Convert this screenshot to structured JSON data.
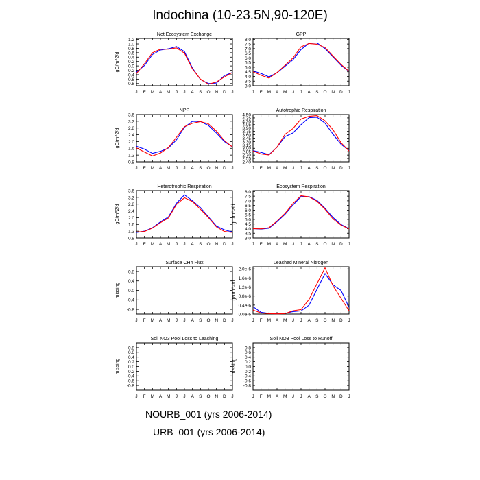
{
  "title": "Indochina (10-23.5N,90-120E)",
  "months": [
    "J",
    "F",
    "M",
    "A",
    "M",
    "J",
    "J",
    "A",
    "S",
    "O",
    "N",
    "D",
    "J"
  ],
  "series_styles": [
    {
      "key": "nourb",
      "color": "#0000ff"
    },
    {
      "key": "urb",
      "color": "#ff0000"
    }
  ],
  "legend": [
    {
      "label": "NOURB_001 (yrs 2006-2014)",
      "color": "#0000ff"
    },
    {
      "label": "URB_001 (yrs 2006-2014)",
      "color": "#ff0000"
    }
  ],
  "chart_data": [
    {
      "type": "line",
      "title": "Net Ecosystem Exchange",
      "ylabel": "gC/m^2/d",
      "ylim": [
        -0.9,
        1.25
      ],
      "ticks": [
        "-0.8",
        "-0.6",
        "-0.4",
        "-0.2",
        "0.0",
        "0.2",
        "0.4",
        "0.6",
        "0.8",
        "1.0",
        "1.2"
      ],
      "tick_values": [
        -0.8,
        -0.6,
        -0.4,
        -0.2,
        0.0,
        0.2,
        0.4,
        0.6,
        0.8,
        1.0,
        1.2
      ],
      "series": [
        {
          "key": "nourb",
          "values": [
            -0.28,
            0.02,
            0.52,
            0.72,
            0.78,
            0.88,
            0.65,
            -0.1,
            -0.62,
            -0.8,
            -0.78,
            -0.44,
            -0.3
          ]
        },
        {
          "key": "urb",
          "values": [
            -0.35,
            0.1,
            0.6,
            0.76,
            0.76,
            0.82,
            0.58,
            -0.14,
            -0.6,
            -0.83,
            -0.73,
            -0.5,
            -0.3
          ]
        }
      ]
    },
    {
      "type": "line",
      "title": "GPP",
      "ylabel": "",
      "ylim": [
        3.0,
        8.1
      ],
      "ticks": [
        "3.0",
        "3.5",
        "4.0",
        "4.5",
        "5.0",
        "5.5",
        "6.0",
        "6.5",
        "7.0",
        "7.5",
        "8.0"
      ],
      "tick_values": [
        3.0,
        3.5,
        4.0,
        4.5,
        5.0,
        5.5,
        6.0,
        6.5,
        7.0,
        7.5,
        8.0
      ],
      "series": [
        {
          "key": "nourb",
          "values": [
            4.6,
            4.32,
            3.95,
            4.4,
            5.1,
            5.8,
            6.9,
            7.6,
            7.62,
            7.0,
            6.1,
            5.2,
            4.55
          ]
        },
        {
          "key": "urb",
          "values": [
            4.5,
            4.12,
            3.82,
            4.42,
            5.2,
            6.0,
            7.2,
            7.55,
            7.48,
            7.12,
            6.2,
            5.3,
            4.55
          ]
        }
      ]
    },
    {
      "type": "line",
      "title": "NPP",
      "ylabel": "gC/m^2/d",
      "ylim": [
        0.8,
        3.6
      ],
      "ticks": [
        "0.8",
        "1.2",
        "1.6",
        "2.0",
        "2.4",
        "2.8",
        "3.2",
        "3.6"
      ],
      "tick_values": [
        0.8,
        1.2,
        1.6,
        2.0,
        2.4,
        2.8,
        3.2,
        3.6
      ],
      "series": [
        {
          "key": "nourb",
          "values": [
            1.72,
            1.55,
            1.3,
            1.42,
            1.62,
            2.1,
            2.85,
            3.2,
            3.18,
            2.95,
            2.5,
            2.0,
            1.68
          ]
        },
        {
          "key": "urb",
          "values": [
            1.62,
            1.38,
            1.15,
            1.32,
            1.65,
            2.25,
            2.88,
            3.08,
            3.18,
            3.05,
            2.62,
            2.05,
            1.68
          ]
        }
      ]
    },
    {
      "type": "line",
      "title": "Autotrophic Respiration",
      "ylabel": "",
      "ylim": [
        2.4,
        4.5
      ],
      "ticks": [
        "2.40",
        "2.55",
        "2.70",
        "2.85",
        "3.00",
        "3.15",
        "3.30",
        "3.45",
        "3.60",
        "3.75",
        "3.90",
        "4.05",
        "4.20",
        "4.35",
        "4.50"
      ],
      "tick_values": [
        2.4,
        2.55,
        2.7,
        2.85,
        3.0,
        3.15,
        3.3,
        3.45,
        3.6,
        3.75,
        3.9,
        4.05,
        4.2,
        4.35,
        4.5
      ],
      "series": [
        {
          "key": "nourb",
          "values": [
            2.9,
            2.82,
            2.72,
            3.05,
            3.52,
            3.68,
            4.05,
            4.36,
            4.38,
            4.12,
            3.62,
            3.18,
            2.9
          ]
        },
        {
          "key": "urb",
          "values": [
            2.88,
            2.75,
            2.7,
            3.05,
            3.62,
            3.88,
            4.3,
            4.42,
            4.45,
            4.22,
            3.82,
            3.25,
            2.88
          ]
        }
      ]
    },
    {
      "type": "line",
      "title": "Heterotrophic Respiration",
      "ylabel": "gC/m^2/d",
      "ylim": [
        0.8,
        3.6
      ],
      "ticks": [
        "0.8",
        "1.2",
        "1.6",
        "2.0",
        "2.4",
        "2.8",
        "3.2",
        "3.6"
      ],
      "tick_values": [
        0.8,
        1.2,
        1.6,
        2.0,
        2.4,
        2.8,
        3.2,
        3.6
      ],
      "series": [
        {
          "key": "nourb",
          "values": [
            1.12,
            1.2,
            1.4,
            1.75,
            2.05,
            2.85,
            3.35,
            3.0,
            2.6,
            2.05,
            1.5,
            1.28,
            1.15
          ]
        },
        {
          "key": "urb",
          "values": [
            1.15,
            1.18,
            1.38,
            1.7,
            1.98,
            2.78,
            3.18,
            2.95,
            2.5,
            2.0,
            1.45,
            1.18,
            1.12
          ]
        }
      ]
    },
    {
      "type": "line",
      "title": "Ecosystem Respiration",
      "ylabel": "gC/m^2/d",
      "ylim": [
        3.0,
        8.1
      ],
      "ticks": [
        "3.0",
        "3.5",
        "4.0",
        "4.5",
        "5.0",
        "5.5",
        "6.0",
        "6.5",
        "7.0",
        "7.5",
        "8.0"
      ],
      "tick_values": [
        3.0,
        3.5,
        4.0,
        4.5,
        5.0,
        5.5,
        6.0,
        6.5,
        7.0,
        7.5,
        8.0
      ],
      "series": [
        {
          "key": "nourb",
          "values": [
            4.0,
            3.95,
            4.05,
            4.75,
            5.55,
            6.55,
            7.45,
            7.45,
            7.05,
            6.2,
            5.2,
            4.45,
            4.0
          ]
        },
        {
          "key": "urb",
          "values": [
            4.0,
            3.98,
            4.1,
            4.82,
            5.65,
            6.72,
            7.55,
            7.42,
            6.95,
            6.1,
            5.05,
            4.38,
            3.98
          ]
        }
      ]
    },
    {
      "type": "line",
      "title": "Surface CH4 Flux",
      "ylabel": "missing",
      "ylim": [
        -1.0,
        1.0
      ],
      "ticks": [
        "-0.8",
        "-0.4",
        "0.0",
        "0.4",
        "0.8"
      ],
      "tick_values": [
        -0.8,
        -0.4,
        0.0,
        0.4,
        0.8
      ],
      "series": []
    },
    {
      "type": "line",
      "title": "Leached Mineral Nitrogen",
      "ylabel": "gN/m^2/d",
      "ylim": [
        0.0,
        2.1e-06
      ],
      "ticks": [
        "0.0e-6",
        "0.4e-6",
        "0.8e-6",
        "1.2e-6",
        "1.6e-6",
        "2.0e-6"
      ],
      "tick_values": [
        0.0,
        4e-07,
        8e-07,
        1.2e-06,
        1.6e-06,
        2e-06
      ],
      "series": [
        {
          "key": "nourb",
          "values": [
            3.3e-07,
            8e-08,
            3e-08,
            2e-08,
            3e-08,
            1.1e-07,
            1.4e-07,
            4e-07,
            1.1e-06,
            1.8e-06,
            1.3e-06,
            1.05e-06,
            3e-07
          ]
        },
        {
          "key": "urb",
          "values": [
            1.8e-07,
            5e-08,
            2e-08,
            1e-08,
            2e-08,
            1.5e-07,
            2e-07,
            6.5e-07,
            1.35e-06,
            2.05e-06,
            1.25e-06,
            7e-07,
            1.5e-07
          ]
        }
      ]
    },
    {
      "type": "line",
      "title": "Soil NO3 Pool Loss to Leaching",
      "ylabel": "missing",
      "ylim": [
        -1.0,
        1.0
      ],
      "ticks": [
        "-0.8",
        "-0.6",
        "-0.4",
        "-0.2",
        "0.0",
        "0.2",
        "0.4",
        "0.6",
        "0.8"
      ],
      "tick_values": [
        -0.8,
        -0.6,
        -0.4,
        -0.2,
        0.0,
        0.2,
        0.4,
        0.6,
        0.8
      ],
      "series": []
    },
    {
      "type": "line",
      "title": "Soil NO3 Pool Loss to Runoff",
      "ylabel": "missing",
      "ylim": [
        -1.0,
        1.0
      ],
      "ticks": [
        "-0.8",
        "-0.6",
        "-0.4",
        "-0.2",
        "0.0",
        "0.2",
        "0.4",
        "0.6",
        "0.8"
      ],
      "tick_values": [
        -0.8,
        -0.6,
        -0.4,
        -0.2,
        0.0,
        0.2,
        0.4,
        0.6,
        0.8
      ],
      "series": []
    }
  ]
}
